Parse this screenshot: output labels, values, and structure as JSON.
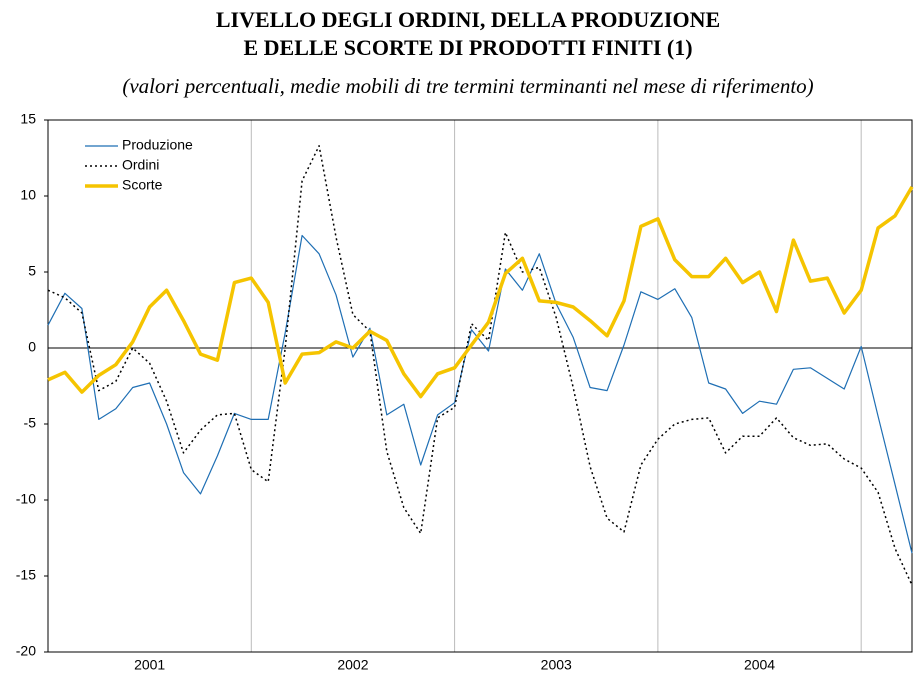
{
  "chart_data": {
    "type": "line",
    "title": [
      "LIVELLO DEGLI ORDINI, DELLA PRODUZIONE",
      "E DELLE SCORTE DI PRODOTTI FINITI (1)"
    ],
    "subtitle": "(valori percentuali, medie mobili di tre termini terminanti nel mese di riferimento)",
    "year_labels": [
      "2001",
      "2002",
      "2003",
      "2004"
    ],
    "ylim": [
      -20,
      15
    ],
    "yticks": [
      15,
      10,
      5,
      0,
      -5,
      -10,
      -15,
      -20
    ],
    "series": [
      {
        "name": "Produzione",
        "color": "#1f6fb4",
        "dash": "solid",
        "width": 1.2,
        "values": [
          1.5,
          3.6,
          2.6,
          -4.7,
          -4.0,
          -2.6,
          -2.3,
          -5.0,
          -8.2,
          -9.6,
          -7.1,
          -4.3,
          -4.7,
          -4.7,
          1.0,
          7.4,
          6.2,
          3.5,
          -0.6,
          1.3,
          -4.4,
          -3.7,
          -7.7,
          -4.4,
          -3.6,
          1.2,
          -0.2,
          5.2,
          3.8,
          6.2,
          2.9,
          0.7,
          -2.6,
          -2.8,
          0.2,
          3.7,
          3.2,
          3.9,
          2.0,
          -2.3,
          -2.7,
          -4.3,
          -3.5,
          -3.7,
          -1.4,
          -1.3,
          -2.0,
          -2.7,
          0.1,
          -4.5,
          -9.0,
          -13.5
        ]
      },
      {
        "name": "Ordini",
        "color": "#000000",
        "dash": "dotted",
        "width": 1.5,
        "values": [
          3.8,
          3.3,
          2.3,
          -2.8,
          -2.2,
          0.0,
          -1.0,
          -3.5,
          -6.9,
          -5.4,
          -4.4,
          -4.3,
          -8.0,
          -8.8,
          0.0,
          11.0,
          13.3,
          7.3,
          2.2,
          1.1,
          -6.8,
          -10.5,
          -12.2,
          -4.6,
          -3.9,
          1.6,
          0.5,
          7.6,
          5.0,
          5.3,
          2.0,
          -2.6,
          -7.8,
          -11.2,
          -12.1,
          -7.7,
          -6.0,
          -5.0,
          -4.7,
          -4.6,
          -6.9,
          -5.8,
          -5.8,
          -4.6,
          -5.9,
          -6.4,
          -6.3,
          -7.3,
          -7.9,
          -9.5,
          -13.2,
          -15.6
        ]
      },
      {
        "name": "Scorte",
        "color": "#f5c400",
        "dash": "solid",
        "width": 3.5,
        "values": [
          -2.1,
          -1.6,
          -2.9,
          -1.8,
          -1.1,
          0.4,
          2.7,
          3.8,
          1.8,
          -0.4,
          -0.8,
          4.3,
          4.6,
          3.0,
          -2.3,
          -0.4,
          -0.3,
          0.4,
          0.0,
          1.1,
          0.5,
          -1.7,
          -3.2,
          -1.7,
          -1.3,
          0.2,
          1.7,
          4.9,
          5.9,
          3.1,
          3.0,
          2.7,
          1.8,
          0.8,
          3.1,
          8.0,
          8.5,
          5.8,
          4.7,
          4.7,
          5.9,
          4.3,
          5.0,
          2.4,
          7.1,
          4.4,
          4.6,
          2.3,
          3.8,
          7.9,
          8.7,
          10.6
        ]
      }
    ]
  }
}
